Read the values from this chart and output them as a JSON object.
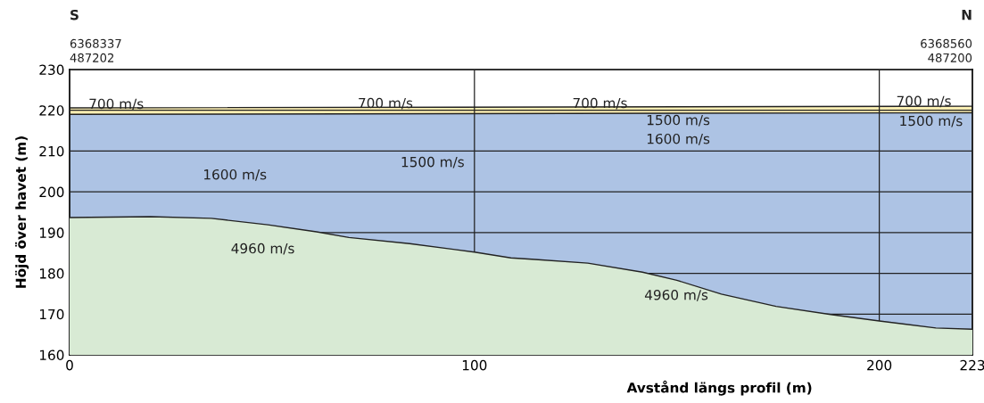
{
  "chart_data": {
    "type": "area",
    "xlabel": "Avstånd längs profil (m)",
    "ylabel": "Höjd över havet (m)",
    "xlim": [
      0,
      223
    ],
    "xticks": [
      0,
      100,
      200,
      223
    ],
    "ylim": [
      160,
      230
    ],
    "yticks": [
      160,
      170,
      180,
      190,
      200,
      210,
      220,
      230
    ],
    "grid": true,
    "series": [
      {
        "color": "#fbeeb2",
        "x": [
          0,
          223
        ],
        "values": [
          220.6,
          221.0
        ]
      },
      {
        "color": "#adc3e4",
        "x": [
          0,
          223
        ],
        "values": [
          219.0,
          219.4
        ]
      },
      {
        "color": "#d8ead4",
        "x": [
          0,
          20,
          35,
          49,
          61,
          69,
          84,
          100,
          109,
          115,
          128,
          141.5,
          150,
          161,
          174.5,
          188,
          200,
          214,
          223
        ],
        "values": [
          193.7,
          193.9,
          193.5,
          191.9,
          190.2,
          188.8,
          187.3,
          185.2,
          183.8,
          183.4,
          182.5,
          180.3,
          178.3,
          174.9,
          171.9,
          169.9,
          168.3,
          166.6,
          166.3
        ]
      }
    ],
    "annotations": [
      "S",
      "6368337",
      "487202",
      "N",
      "6368560",
      "487200",
      {
        "text": "700 m/s",
        "x": 11.5,
        "y": 221.3
      },
      {
        "text": "700 m/s",
        "x": 78,
        "y": 221.5
      },
      {
        "text": "700 m/s",
        "x": 131,
        "y": 221.5
      },
      {
        "text": "700 m/s",
        "x": 211,
        "y": 222
      },
      "1500 m/s",
      "1600 m/s",
      "1500 m/s",
      "1500 m/s",
      "1600 m/s",
      "4960 m/s",
      "4960 m/s"
    ]
  }
}
